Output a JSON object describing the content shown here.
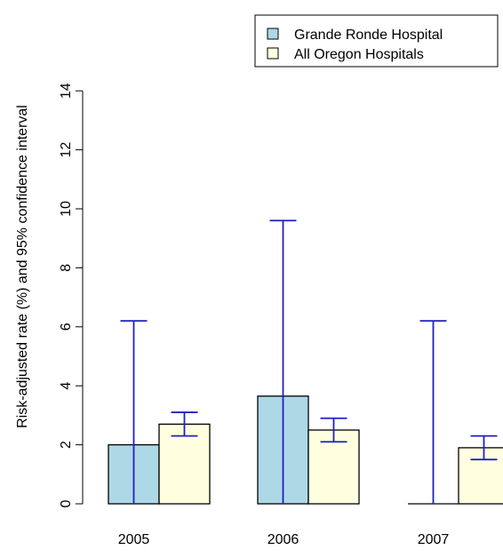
{
  "chart_data": {
    "type": "bar",
    "title": "",
    "xlabel": "",
    "ylabel": "Risk-adjusted rate (%) and 95% confidence interval",
    "ylim": [
      0,
      14
    ],
    "yticks": [
      0,
      2,
      4,
      6,
      8,
      10,
      12,
      14
    ],
    "grid": false,
    "legend_position": "top-right",
    "categories": [
      "2005",
      "2006",
      "2007"
    ],
    "series": [
      {
        "name": "Grande Ronde Hospital",
        "color": "#add8e6",
        "values": [
          2.0,
          3.65,
          0.0
        ],
        "ci_lower": [
          0.0,
          0.0,
          0.0
        ],
        "ci_upper": [
          6.2,
          9.6,
          6.2
        ]
      },
      {
        "name": "All Oregon Hospitals",
        "color": "#ffffe0",
        "values": [
          2.7,
          2.5,
          1.9
        ],
        "ci_lower": [
          2.3,
          2.1,
          1.5
        ],
        "ci_upper": [
          3.1,
          2.9,
          2.3
        ]
      }
    ],
    "error_bar_color": "#2020c0"
  }
}
